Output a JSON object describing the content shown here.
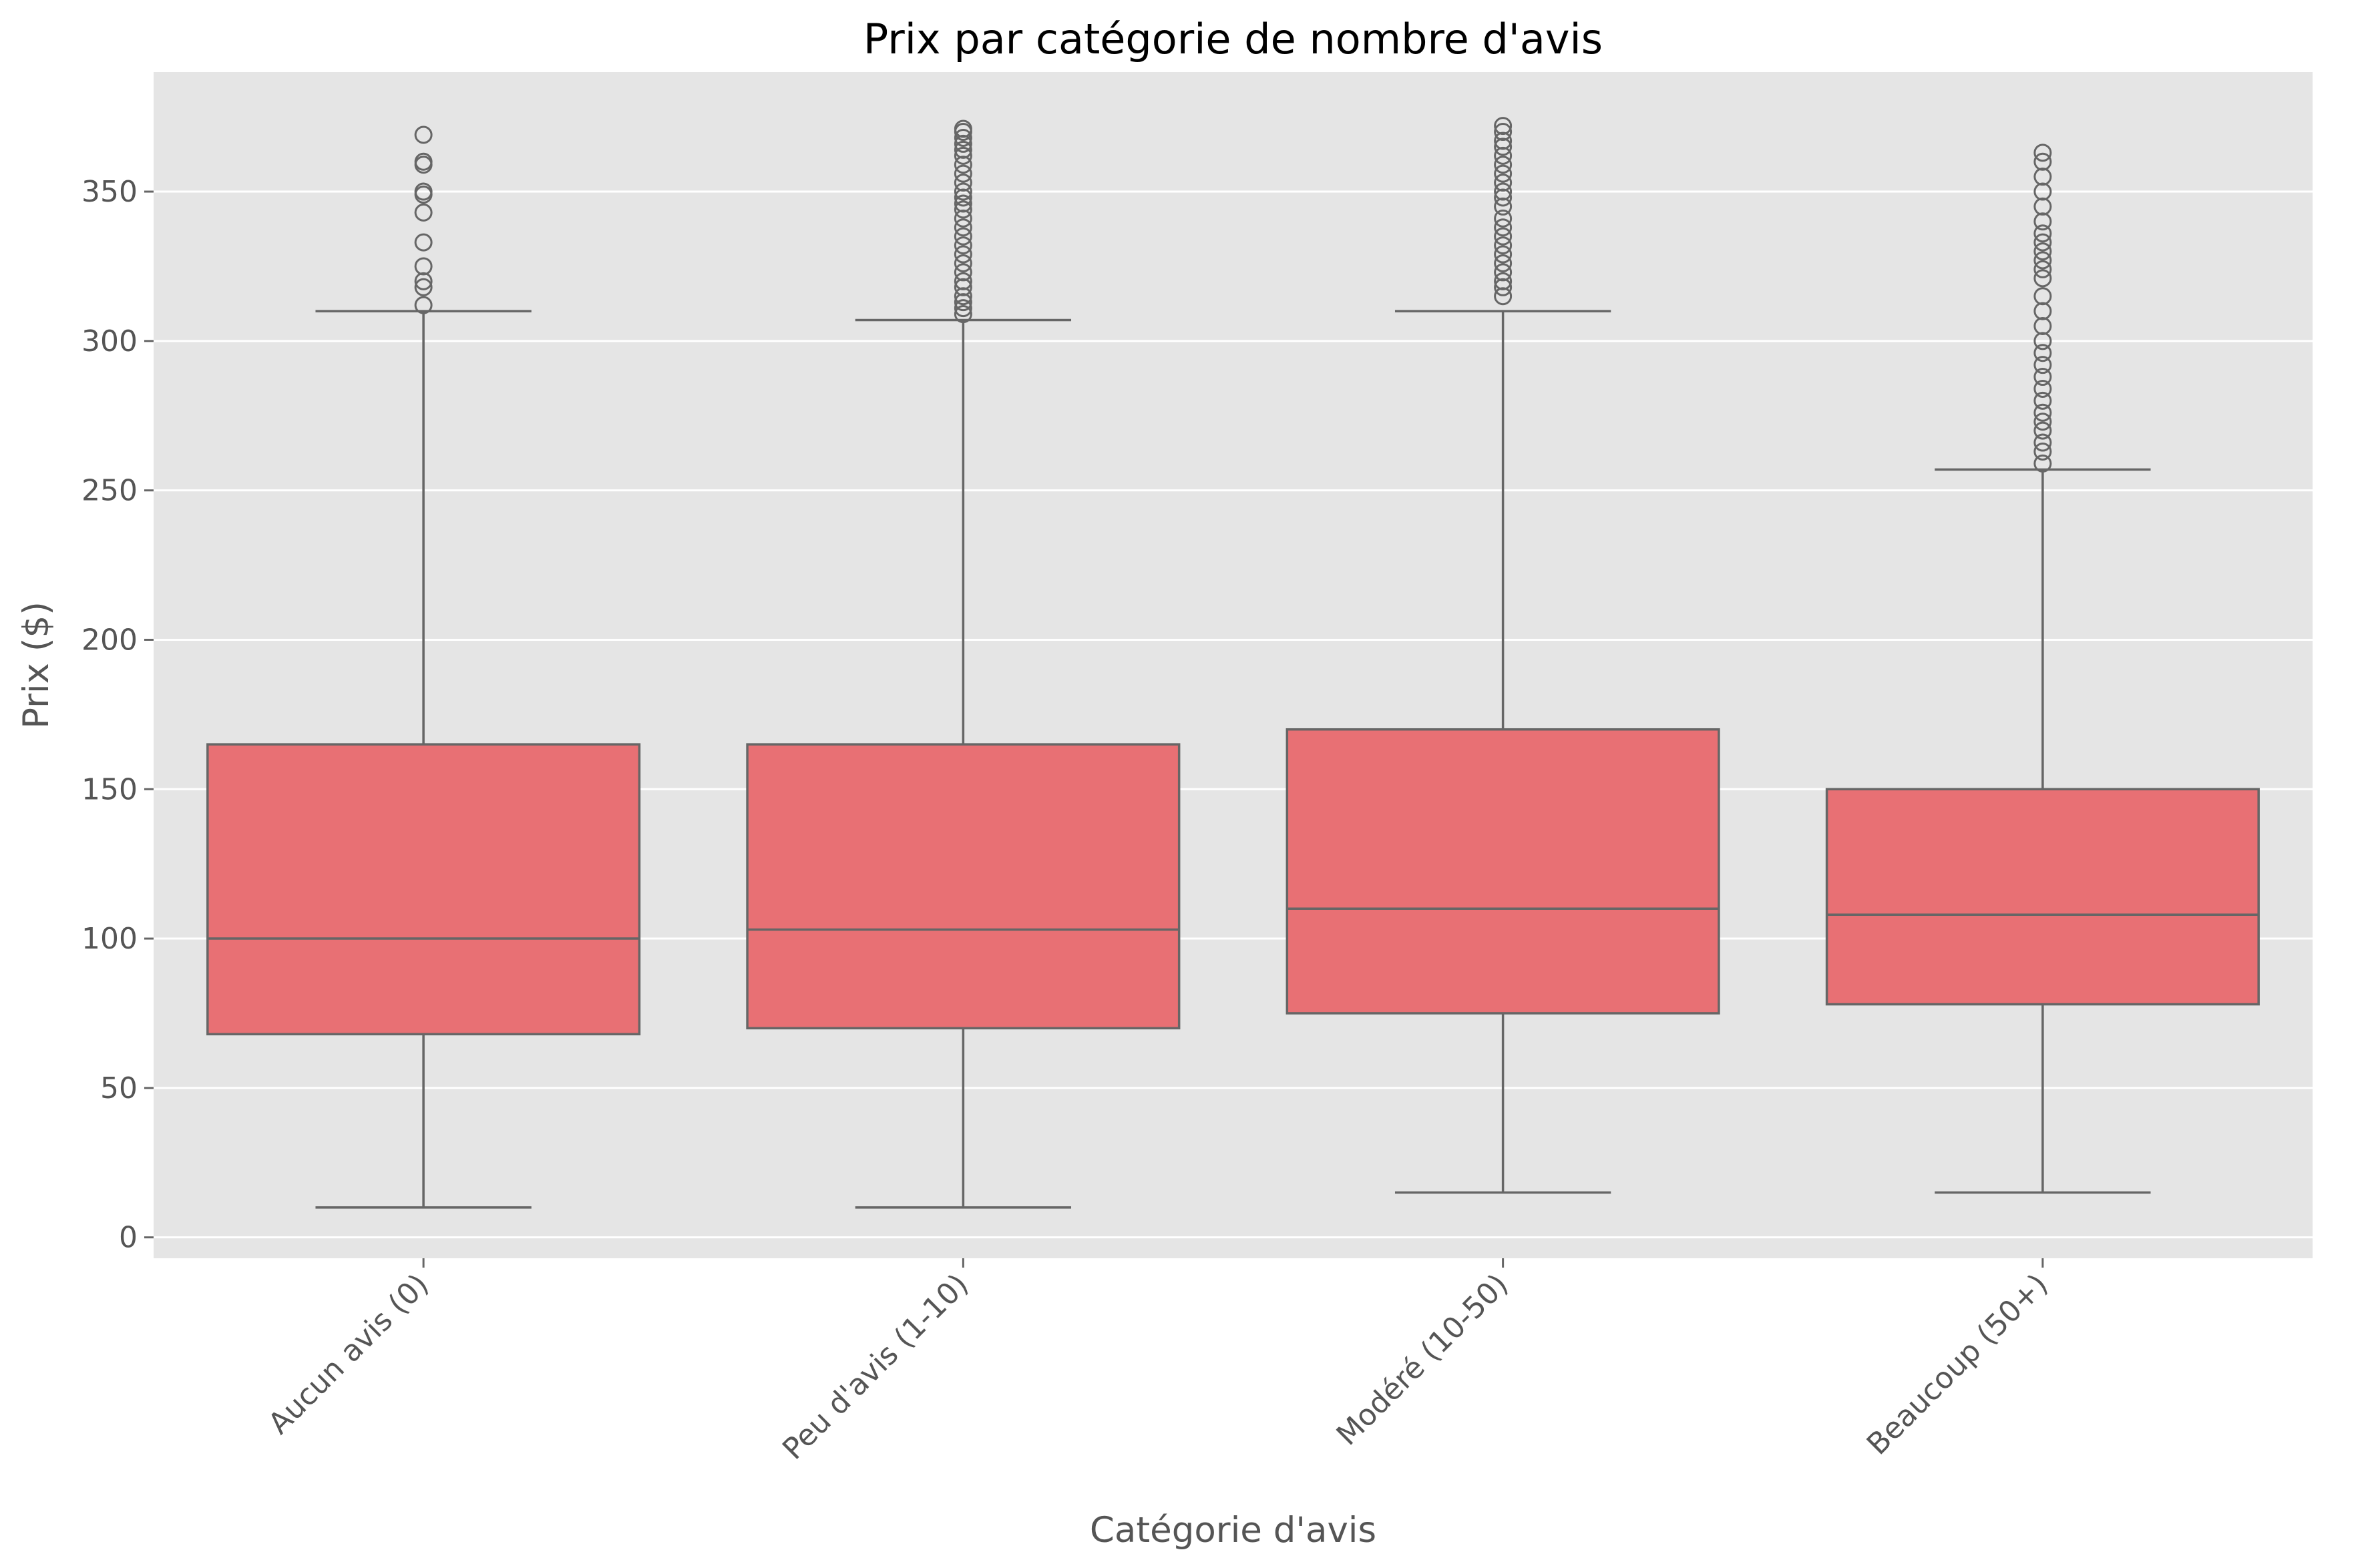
{
  "chart_data": {
    "type": "box",
    "title": "Prix par catégorie de nombre d'avis",
    "xlabel": "Catégorie d'avis",
    "ylabel": "Prix ($)",
    "ylim": [
      -7,
      390
    ],
    "yticks": [
      0,
      50,
      100,
      150,
      200,
      250,
      300,
      350
    ],
    "grid": true,
    "colors": {
      "box_fill": "#e87074",
      "line": "#666666",
      "plot_bg": "#e5e5e5",
      "grid": "#ffffff"
    },
    "categories": [
      "Aucun avis (0)",
      "Peu d'avis (1-10)",
      "Modéré (10-50)",
      "Beaucoup (50+)"
    ],
    "boxes": [
      {
        "category": "Aucun avis (0)",
        "whisker_low": 10,
        "q1": 68,
        "median": 100,
        "q3": 165,
        "whisker_high": 310,
        "outliers": [
          312,
          318,
          320,
          325,
          333,
          343,
          349,
          350,
          359,
          360,
          369
        ]
      },
      {
        "category": "Peu d'avis (1-10)",
        "whisker_low": 10,
        "q1": 70,
        "median": 103,
        "q3": 165,
        "whisker_high": 307,
        "outliers": [
          309,
          311,
          313,
          315,
          318,
          320,
          323,
          326,
          329,
          332,
          335,
          338,
          341,
          344,
          346,
          348,
          350,
          353,
          356,
          359,
          362,
          364,
          366,
          368,
          370,
          371
        ]
      },
      {
        "category": "Modéré (10-50)",
        "whisker_low": 15,
        "q1": 75,
        "median": 110,
        "q3": 170,
        "whisker_high": 310,
        "outliers": [
          315,
          318,
          320,
          323,
          326,
          329,
          332,
          335,
          338,
          341,
          345,
          348,
          350,
          353,
          356,
          359,
          362,
          365,
          367,
          370,
          372
        ]
      },
      {
        "category": "Beaucoup (50+)",
        "whisker_low": 15,
        "q1": 78,
        "median": 108,
        "q3": 150,
        "whisker_high": 257,
        "outliers": [
          259,
          263,
          266,
          270,
          273,
          276,
          280,
          284,
          288,
          292,
          296,
          300,
          305,
          310,
          315,
          321,
          324,
          327,
          330,
          333,
          336,
          340,
          345,
          350,
          355,
          360,
          363
        ]
      }
    ]
  }
}
